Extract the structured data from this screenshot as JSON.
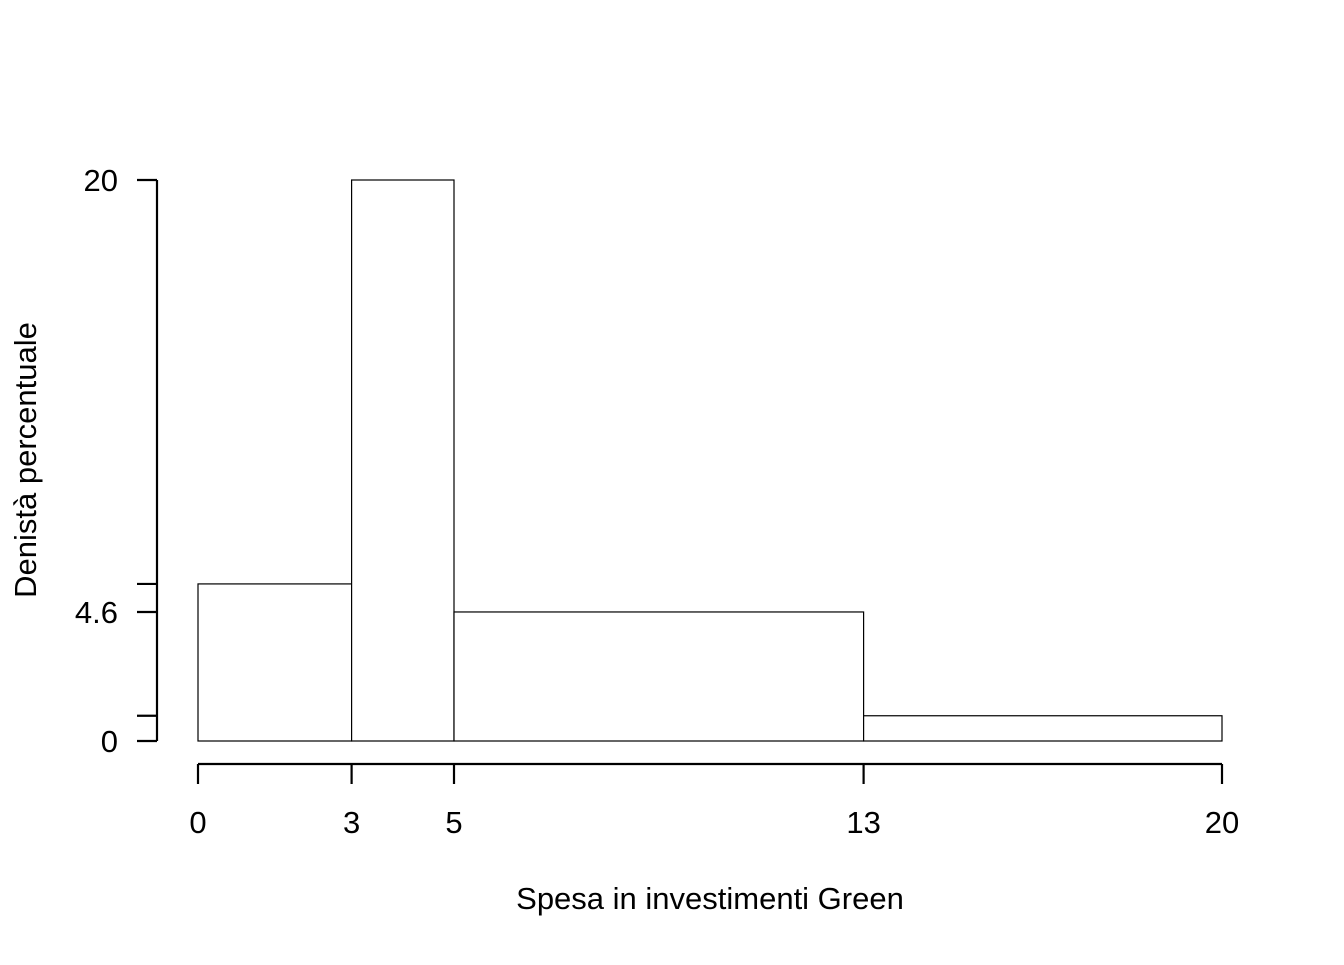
{
  "chart_data": {
    "type": "bar",
    "subtype": "histogram",
    "xlabel": "Spesa in investimenti Green",
    "ylabel": "Denistà percentuale",
    "bins": [
      {
        "from": 0,
        "to": 3,
        "density": 5.6
      },
      {
        "from": 3,
        "to": 5,
        "density": 20
      },
      {
        "from": 5,
        "to": 13,
        "density": 4.6
      },
      {
        "from": 13,
        "to": 20,
        "density": 0.9
      }
    ],
    "xticks": [
      0,
      3,
      5,
      13,
      20
    ],
    "xtick_labels": [
      "0",
      "3",
      "5",
      "13",
      "20"
    ],
    "yticks": [
      0,
      0.9,
      4.6,
      5.6,
      20
    ],
    "ytick_labels": [
      "0",
      "",
      "4.6",
      "",
      "20"
    ],
    "xlim": [
      0,
      20
    ],
    "ylim": [
      0,
      20
    ],
    "grid": false,
    "legend": "none",
    "colors": {
      "bar_fill": "#ffffff",
      "bar_stroke": "#000000",
      "axis": "#000000"
    }
  }
}
